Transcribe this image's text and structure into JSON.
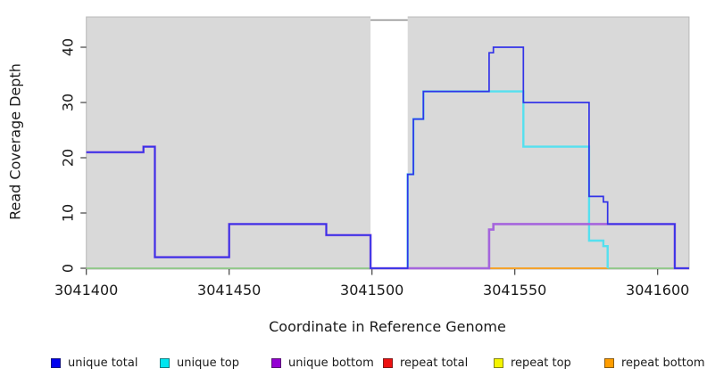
{
  "chart_data": {
    "type": "line",
    "variant": "step",
    "title": "",
    "xlabel": "Coordinate in Reference Genome",
    "ylabel": "Read Coverage Depth",
    "xlim": [
      3041400,
      3041611
    ],
    "ylim": [
      0,
      45.5
    ],
    "xticks": [
      3041400,
      3041450,
      3041500,
      3041550,
      3041600
    ],
    "yticks": [
      0,
      10,
      20,
      30,
      40
    ],
    "grid": false,
    "plot_background": "#d9d9d9",
    "gap_region": {
      "x_start": 3041499.5,
      "x_end": 3041512.5,
      "fill": "#ffffff",
      "cap_color": "#8c8c8c"
    },
    "legend_position": "bottom",
    "legend": [
      {
        "label": "unique total",
        "color": "#0000ee"
      },
      {
        "label": "unique top",
        "color": "#00e6f0"
      },
      {
        "label": "unique bottom",
        "color": "#9400d3"
      },
      {
        "label": "repeat total",
        "color": "#ee1111"
      },
      {
        "label": "repeat top",
        "color": "#f5f500"
      },
      {
        "label": "repeat bottom",
        "color": "#ff9d00"
      }
    ],
    "series": [
      {
        "name": "repeat top",
        "draw_color": "#e8e88a",
        "width": 1.2,
        "points": [
          [
            3041400,
            0
          ],
          [
            3041611,
            0
          ]
        ]
      },
      {
        "name": "zero baseline (green)",
        "draw_color": "#82c882",
        "width": 1.5,
        "points": [
          [
            3041400,
            0
          ],
          [
            3041606,
            0
          ]
        ]
      },
      {
        "name": "repeat total",
        "draw_color": "#e57788",
        "width": 1.5,
        "points": [
          [
            3041512.5,
            0
          ],
          [
            3041541,
            0
          ]
        ]
      },
      {
        "name": "repeat bottom",
        "draw_color": "#ff9d1e",
        "width": 1.8,
        "points": [
          [
            3041541,
            0
          ],
          [
            3041582.5,
            0
          ]
        ]
      },
      {
        "name": "unique top",
        "draw_color": "#55e0ef",
        "width": 2.4,
        "points": [
          [
            3041512.5,
            0
          ],
          [
            3041512.5,
            17
          ],
          [
            3041514.5,
            17
          ],
          [
            3041514.5,
            27
          ],
          [
            3041518,
            27
          ],
          [
            3041518,
            32
          ],
          [
            3041553,
            32
          ],
          [
            3041553,
            22
          ],
          [
            3041576,
            22
          ],
          [
            3041576,
            5
          ],
          [
            3041581,
            5
          ],
          [
            3041581,
            4
          ],
          [
            3041582.5,
            4
          ],
          [
            3041582.5,
            0
          ]
        ]
      },
      {
        "name": "unique bottom",
        "draw_color": "#a565dd",
        "width": 2.6,
        "points": [
          [
            3041400,
            21
          ],
          [
            3041420,
            21
          ],
          [
            3041420,
            22
          ],
          [
            3041424,
            22
          ],
          [
            3041424,
            2
          ],
          [
            3041450,
            2
          ],
          [
            3041450,
            8
          ],
          [
            3041484,
            8
          ],
          [
            3041484,
            6
          ],
          [
            3041499.5,
            6
          ],
          [
            3041499.5,
            0
          ],
          [
            3041541,
            0
          ],
          [
            3041541,
            7
          ],
          [
            3041542.5,
            7
          ],
          [
            3041542.5,
            8
          ],
          [
            3041606,
            8
          ],
          [
            3041606,
            0
          ],
          [
            3041611,
            0
          ]
        ]
      },
      {
        "name": "unique total",
        "draw_color": "#3333e8",
        "width": 1.7,
        "points": [
          [
            3041400,
            21
          ],
          [
            3041420,
            21
          ],
          [
            3041420,
            22
          ],
          [
            3041424,
            22
          ],
          [
            3041424,
            2
          ],
          [
            3041450,
            2
          ],
          [
            3041450,
            8
          ],
          [
            3041484,
            8
          ],
          [
            3041484,
            6
          ],
          [
            3041499.5,
            6
          ],
          [
            3041499.5,
            0
          ],
          [
            3041512.5,
            0
          ],
          [
            3041512.5,
            17
          ],
          [
            3041514.5,
            17
          ],
          [
            3041514.5,
            27
          ],
          [
            3041518,
            27
          ],
          [
            3041518,
            32
          ],
          [
            3041541,
            32
          ],
          [
            3041541,
            39
          ],
          [
            3041542.5,
            39
          ],
          [
            3041542.5,
            40
          ],
          [
            3041553,
            40
          ],
          [
            3041553,
            30
          ],
          [
            3041576,
            30
          ],
          [
            3041576,
            13
          ],
          [
            3041581,
            13
          ],
          [
            3041581,
            12
          ],
          [
            3041582.5,
            12
          ],
          [
            3041582.5,
            8
          ],
          [
            3041606,
            8
          ],
          [
            3041606,
            0
          ],
          [
            3041611,
            0
          ]
        ]
      }
    ]
  }
}
